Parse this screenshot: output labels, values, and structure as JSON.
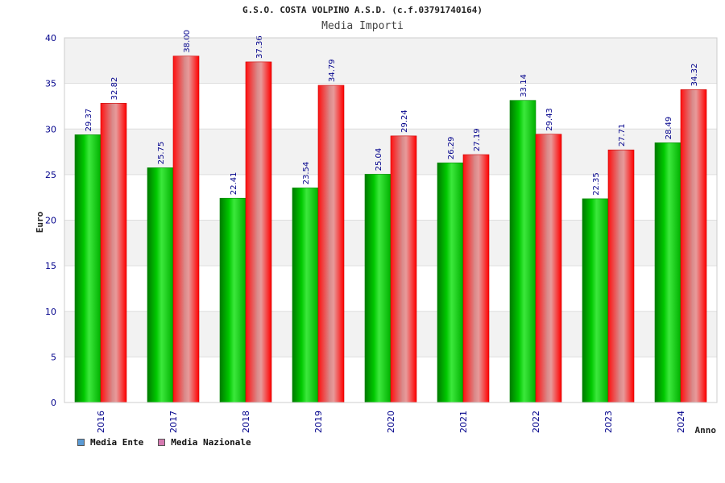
{
  "chart_data": {
    "type": "bar",
    "title": "G.S.O. COSTA VOLPINO A.S.D. (c.f.03791740164)",
    "subtitle": "Media Importi",
    "xlabel": "Anno",
    "ylabel": "Euro",
    "categories": [
      "2016",
      "2017",
      "2018",
      "2019",
      "2020",
      "2021",
      "2022",
      "2023",
      "2024"
    ],
    "series": [
      {
        "name": "Media Ente",
        "values": [
          29.37,
          25.75,
          22.41,
          23.54,
          25.04,
          26.29,
          33.14,
          22.35,
          28.49
        ],
        "color": "#00aa00",
        "legend_color": "#5b9bd5"
      },
      {
        "name": "Media Nazionale",
        "values": [
          32.82,
          38.0,
          37.36,
          34.79,
          29.24,
          27.19,
          29.43,
          27.71,
          34.32
        ],
        "color": "#ff0000",
        "legend_color": "#d67ab1"
      }
    ],
    "data_labels": [
      [
        "29.37",
        "25.75",
        "22.41",
        "23.54",
        "25.04",
        "26.29",
        "33.14",
        "22.35",
        "28.49"
      ],
      [
        "32.82",
        "38.00",
        "37.36",
        "34.79",
        "29.24",
        "27.19",
        "29.43",
        "27.71",
        "34.32"
      ]
    ],
    "ylim": [
      0,
      40
    ],
    "yticks": [
      "0",
      "5",
      "10",
      "15",
      "20",
      "25",
      "30",
      "35",
      "40"
    ],
    "grid": true,
    "legend_position": "bottom-left"
  }
}
